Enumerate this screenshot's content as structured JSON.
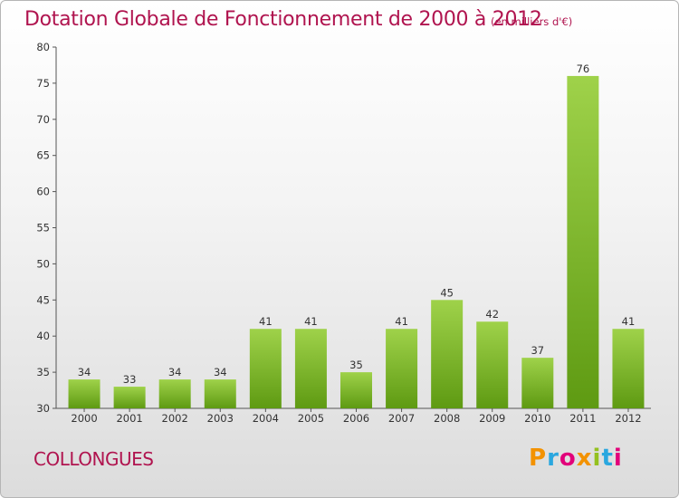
{
  "title": "Dotation Globale de Fonctionnement de 2000 à 2012",
  "subtitle": "(en milliers d'€)",
  "commune": "COLLONGUES",
  "logo": {
    "text": "Proxiti",
    "letters": [
      "P",
      "r",
      "o",
      "x",
      "i",
      "t",
      "i"
    ],
    "colors": [
      "#f39200",
      "#2aa7df",
      "#e2007a",
      "#f39200",
      "#94c11f",
      "#2aa7df",
      "#e2007a"
    ]
  },
  "chart_data": {
    "type": "bar",
    "categories": [
      "2000",
      "2001",
      "2002",
      "2003",
      "2004",
      "2005",
      "2006",
      "2007",
      "2008",
      "2009",
      "2010",
      "2011",
      "2012"
    ],
    "values": [
      34,
      33,
      34,
      34,
      41,
      41,
      35,
      41,
      45,
      42,
      37,
      76,
      41
    ],
    "ylim": [
      30,
      80
    ],
    "yticks": [
      30,
      35,
      40,
      45,
      50,
      55,
      60,
      65,
      70,
      75,
      80
    ],
    "grid": false,
    "bar_color_light": "#9fd24a",
    "bar_color_dark": "#5e9a12"
  }
}
